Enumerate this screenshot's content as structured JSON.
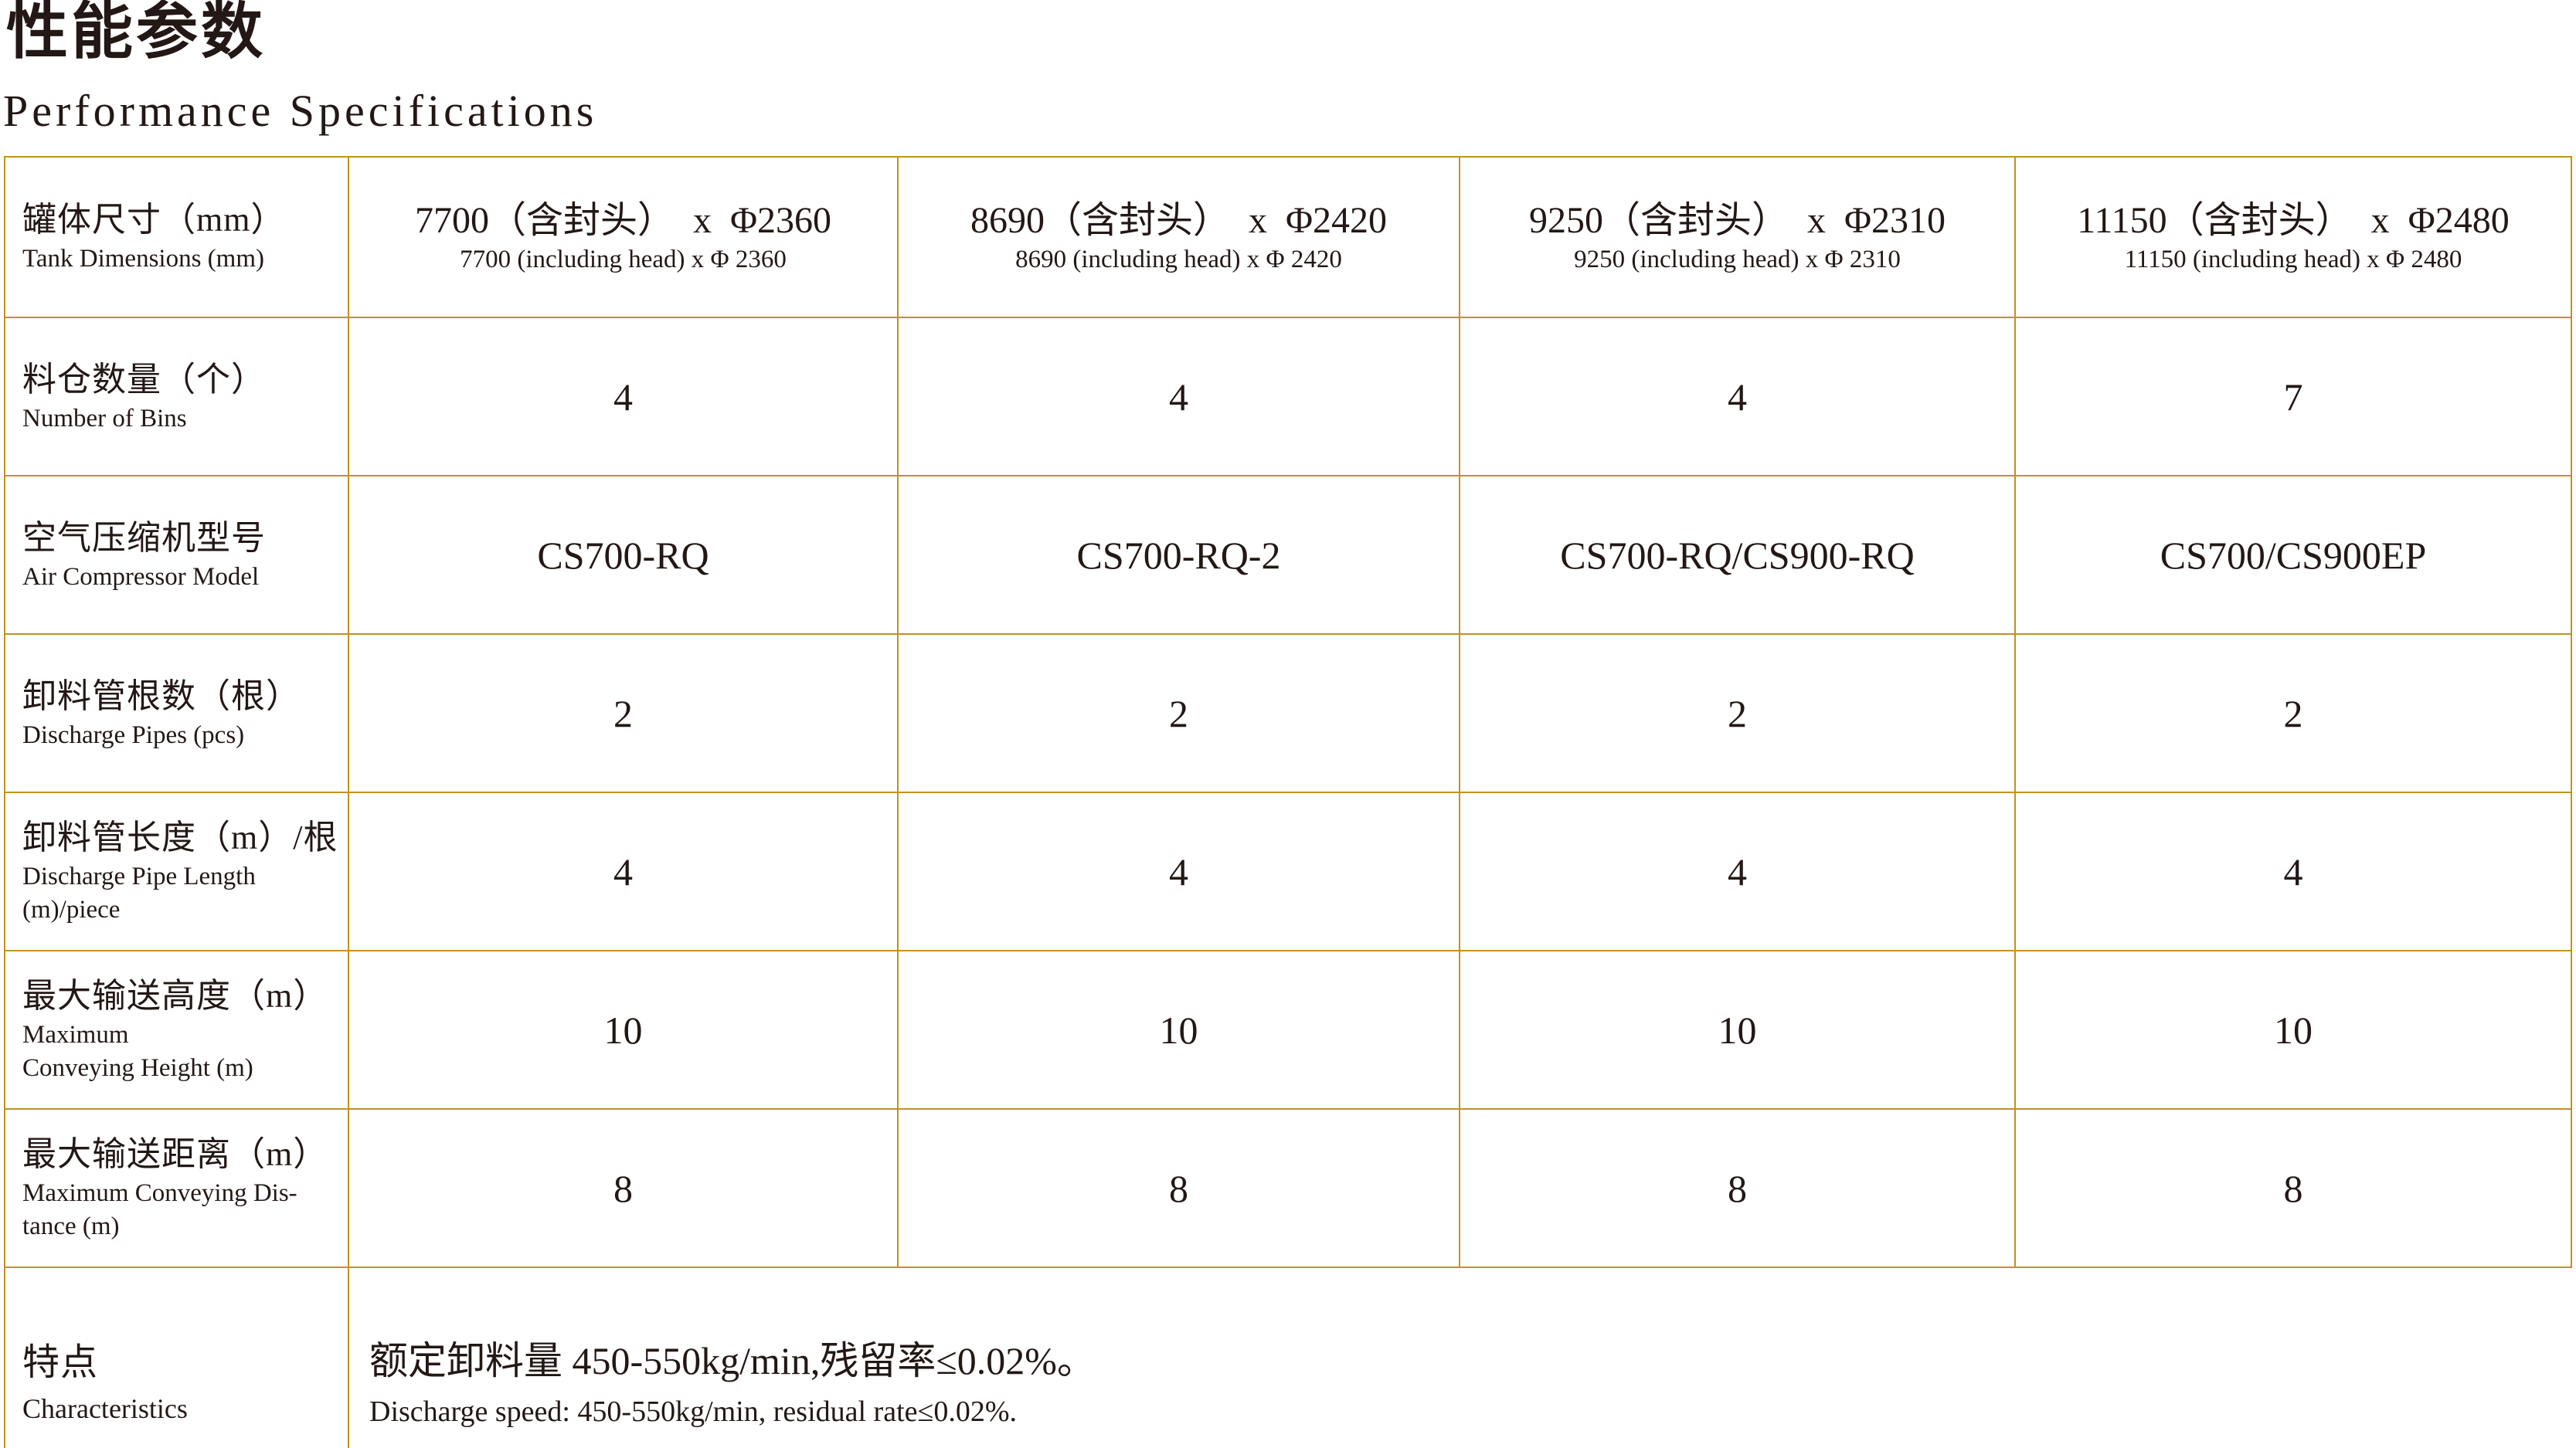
{
  "page": {
    "title_zh": "性能参数",
    "title_en": "Performance Specifications"
  },
  "colors": {
    "border": "#C3921F",
    "text": "#231815"
  },
  "table": {
    "rows": [
      {
        "label_zh": "罐体尺寸（mm）",
        "label_en": "Tank Dimensions (mm)",
        "cells": [
          {
            "zh": "7700（含封头）  x  Φ2360",
            "en": "7700 (including head) x Φ 2360"
          },
          {
            "zh": "8690（含封头）  x  Φ2420",
            "en": "8690 (including head) x Φ 2420"
          },
          {
            "zh": "9250（含封头）  x  Φ2310",
            "en": "9250 (including head) x Φ 2310"
          },
          {
            "zh": "11150（含封头）  x  Φ2480",
            "en": "11150 (including head) x Φ 2480"
          }
        ]
      },
      {
        "label_zh": "料仓数量（个）",
        "label_en": "Number of Bins",
        "cells": [
          "4",
          "4",
          "4",
          "7"
        ]
      },
      {
        "label_zh": "空气压缩机型号",
        "label_en": "Air Compressor Model",
        "cells": [
          "CS700-RQ",
          "CS700-RQ-2",
          "CS700-RQ/CS900-RQ",
          "CS700/CS900EP"
        ]
      },
      {
        "label_zh": "卸料管根数（根）",
        "label_en": "Discharge Pipes (pcs)",
        "cells": [
          "2",
          "2",
          "2",
          "2"
        ]
      },
      {
        "label_zh": "卸料管长度（m）/根",
        "label_en": "Discharge Pipe Length\n(m)/piece",
        "cells": [
          "4",
          "4",
          "4",
          "4"
        ]
      },
      {
        "label_zh": "最大输送高度（m）",
        "label_en": "Maximum\nConveying Height (m)",
        "cells": [
          "10",
          "10",
          "10",
          "10"
        ]
      },
      {
        "label_zh": "最大输送距离（m）",
        "label_en": "Maximum Conveying Dis-\ntance (m)",
        "cells": [
          "8",
          "8",
          "8",
          "8"
        ]
      },
      {
        "label_zh": "特点",
        "label_en": "Characteristics",
        "merged_zh": "额定卸料量 450-550kg/min,残留率≤0.02%。",
        "merged_en": "Discharge speed: 450-550kg/min, residual rate≤0.02%."
      }
    ]
  }
}
